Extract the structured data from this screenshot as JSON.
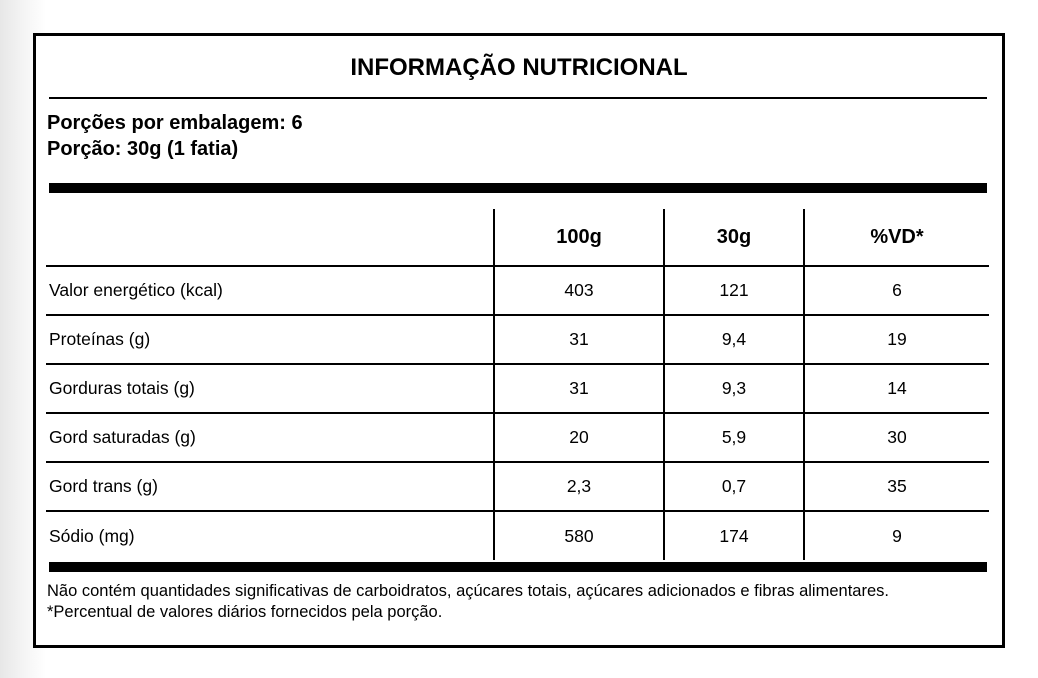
{
  "label": {
    "title": "INFORMAÇÃO NUTRICIONAL",
    "servings_per_package": "Porções por embalagem: 6",
    "serving_size": "Porção: 30g (1 fatia)",
    "table": {
      "headers": [
        "",
        "100g",
        "30g",
        "%VD*"
      ],
      "rows": [
        [
          "Valor energético (kcal)",
          "403",
          "121",
          "6"
        ],
        [
          "Proteínas (g)",
          "31",
          "9,4",
          "19"
        ],
        [
          "Gorduras totais (g)",
          "31",
          "9,3",
          "14"
        ],
        [
          "Gord saturadas (g)",
          "20",
          "5,9",
          "30"
        ],
        [
          "Gord trans (g)",
          "2,3",
          "0,7",
          "35"
        ],
        [
          "Sódio (mg)",
          "580",
          "174",
          "9"
        ]
      ]
    },
    "footnote": "Não contém quantidades significativas de carboidratos, açúcares totais, açúcares adicionados e fibras alimentares. *Percentual de valores diários fornecidos pela porção.",
    "colors": {
      "border": "#000000",
      "text": "#000000",
      "background": "#ffffff"
    }
  }
}
